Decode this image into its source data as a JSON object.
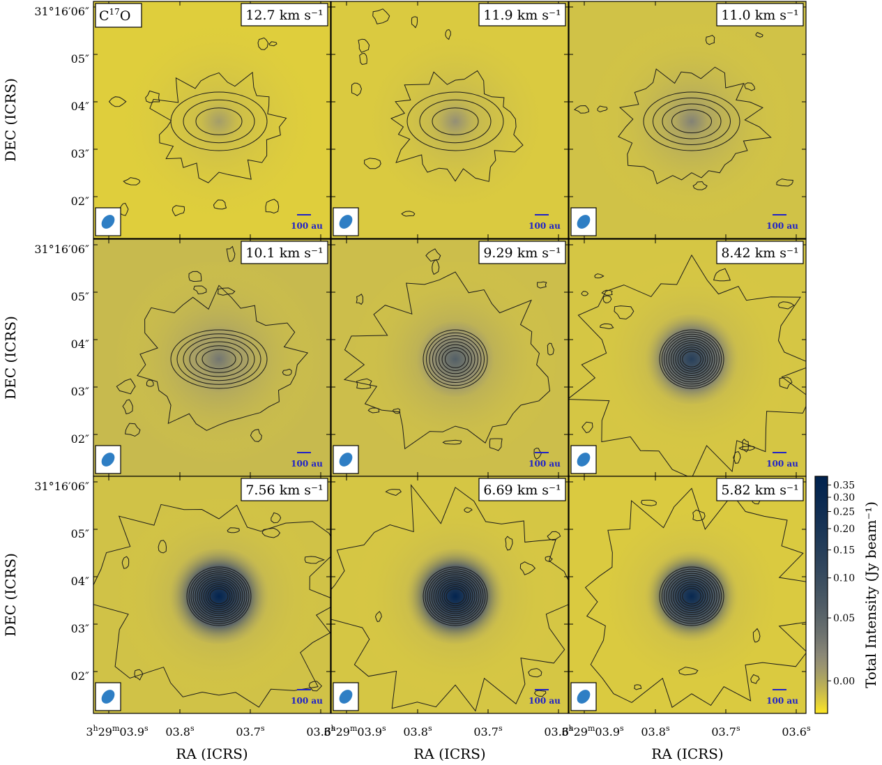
{
  "chart_data": {
    "type": "heatmap",
    "description_kind": "channel-map",
    "molecule_label": "C17O",
    "molecule_base": "C",
    "molecule_superscript": "17",
    "molecule_tail": "O",
    "velocity_unit": "km s⁻¹",
    "panels": [
      {
        "velocity": "12.7",
        "peak": 0.05,
        "levels": 3,
        "extended": 0.0
      },
      {
        "velocity": "11.9",
        "peak": 0.07,
        "levels": 3,
        "extended": 0.01
      },
      {
        "velocity": "11.0",
        "peak": 0.09,
        "levels": 4,
        "extended": 0.03
      },
      {
        "velocity": "10.1",
        "peak": 0.11,
        "levels": 6,
        "extended": 0.05
      },
      {
        "velocity": "9.29",
        "peak": 0.16,
        "levels": 8,
        "extended": 0.04
      },
      {
        "velocity": "8.42",
        "peak": 0.26,
        "levels": 11,
        "extended": 0.02
      },
      {
        "velocity": "7.56",
        "peak": 0.38,
        "levels": 12,
        "extended": 0.03
      },
      {
        "velocity": "6.69",
        "peak": 0.38,
        "levels": 12,
        "extended": 0.02
      },
      {
        "velocity": "5.82",
        "peak": 0.36,
        "levels": 11,
        "extended": 0.01
      }
    ],
    "xlabel": "RA (ICRS)",
    "ylabel": "DEC (ICRS)",
    "x_ticks": [
      {
        "label_main": "3",
        "sup1": "h",
        "mid": "29",
        "sup2": "m",
        "tail": "03.9",
        "sup3": "s",
        "value": "03:29:03.9"
      },
      {
        "label_main": "",
        "sup1": "",
        "mid": "",
        "sup2": "",
        "tail": "03.8",
        "sup3": "s",
        "value": "03.8"
      },
      {
        "label_main": "",
        "sup1": "",
        "mid": "",
        "sup2": "",
        "tail": "03.7",
        "sup3": "s",
        "value": "03.7"
      },
      {
        "label_main": "",
        "sup1": "",
        "mid": "",
        "sup2": "",
        "tail": "03.6",
        "sup3": "s",
        "value": "03.6"
      }
    ],
    "y_ticks": [
      "31°16′06″",
      "05″",
      "04″",
      "03″",
      "02″"
    ],
    "scale_bar_label": "100 au",
    "colorbar": {
      "label": "Total Intensity (Jy beam⁻¹)",
      "ticks": [
        "0.00",
        "0.05",
        "0.10",
        "0.15",
        "0.20",
        "0.25",
        "0.30",
        "0.35"
      ],
      "tick_values": [
        0.0,
        0.05,
        0.1,
        0.15,
        0.2,
        0.25,
        0.3,
        0.35
      ],
      "vmin": -0.02,
      "vmax": 0.39,
      "stretch": "asinh",
      "cmap": "cividis_r"
    },
    "colors": {
      "low": "#FDE725",
      "mid": "#8F8B79",
      "high": "#00224E",
      "beam": "#2E7EC4",
      "scale_bar": "#1F22C8",
      "contour": "#1A1A1A"
    }
  }
}
